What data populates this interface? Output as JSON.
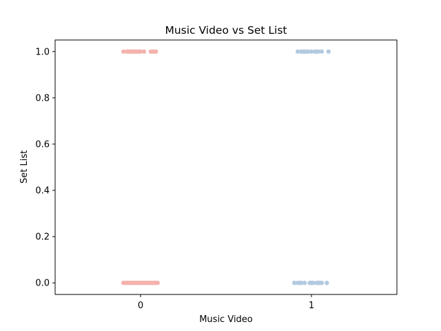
{
  "chart_data": {
    "type": "scatter",
    "subtype": "strip",
    "title": "Music Video vs Set List",
    "xlabel": "Music Video",
    "ylabel": "Set List",
    "categories": [
      "0",
      "1"
    ],
    "ylim": [
      -0.05,
      1.05
    ],
    "yticks": [
      0.0,
      0.2,
      0.4,
      0.6,
      0.8,
      1.0
    ],
    "ytick_labels": [
      "0.0",
      "0.2",
      "0.4",
      "0.6",
      "0.8",
      "1.0"
    ],
    "grid": false,
    "legend": "none",
    "colors": {
      "0": "#f4b2ad",
      "1": "#b2cae0"
    },
    "points": [
      {
        "cat": 0,
        "jitter": -0.1,
        "y": 1.0
      },
      {
        "cat": 0,
        "jitter": -0.08,
        "y": 1.0
      },
      {
        "cat": 0,
        "jitter": -0.07,
        "y": 1.0
      },
      {
        "cat": 0,
        "jitter": -0.06,
        "y": 1.0
      },
      {
        "cat": 0,
        "jitter": -0.05,
        "y": 1.0
      },
      {
        "cat": 0,
        "jitter": -0.04,
        "y": 1.0
      },
      {
        "cat": 0,
        "jitter": -0.03,
        "y": 1.0
      },
      {
        "cat": 0,
        "jitter": -0.02,
        "y": 1.0
      },
      {
        "cat": 0,
        "jitter": -0.01,
        "y": 1.0
      },
      {
        "cat": 0,
        "jitter": 0.0,
        "y": 1.0
      },
      {
        "cat": 0,
        "jitter": 0.02,
        "y": 1.0
      },
      {
        "cat": 0,
        "jitter": 0.06,
        "y": 1.0
      },
      {
        "cat": 0,
        "jitter": 0.07,
        "y": 1.0
      },
      {
        "cat": 0,
        "jitter": 0.08,
        "y": 1.0
      },
      {
        "cat": 0,
        "jitter": 0.09,
        "y": 1.0
      },
      {
        "cat": 0,
        "jitter": -0.1,
        "y": 0.0
      },
      {
        "cat": 0,
        "jitter": -0.09,
        "y": 0.0
      },
      {
        "cat": 0,
        "jitter": -0.08,
        "y": 0.0
      },
      {
        "cat": 0,
        "jitter": -0.07,
        "y": 0.0
      },
      {
        "cat": 0,
        "jitter": -0.06,
        "y": 0.0
      },
      {
        "cat": 0,
        "jitter": -0.05,
        "y": 0.0
      },
      {
        "cat": 0,
        "jitter": -0.04,
        "y": 0.0
      },
      {
        "cat": 0,
        "jitter": -0.03,
        "y": 0.0
      },
      {
        "cat": 0,
        "jitter": -0.02,
        "y": 0.0
      },
      {
        "cat": 0,
        "jitter": -0.01,
        "y": 0.0
      },
      {
        "cat": 0,
        "jitter": 0.0,
        "y": 0.0
      },
      {
        "cat": 0,
        "jitter": 0.01,
        "y": 0.0
      },
      {
        "cat": 0,
        "jitter": 0.02,
        "y": 0.0
      },
      {
        "cat": 0,
        "jitter": 0.03,
        "y": 0.0
      },
      {
        "cat": 0,
        "jitter": 0.04,
        "y": 0.0
      },
      {
        "cat": 0,
        "jitter": 0.05,
        "y": 0.0
      },
      {
        "cat": 0,
        "jitter": 0.06,
        "y": 0.0
      },
      {
        "cat": 0,
        "jitter": 0.07,
        "y": 0.0
      },
      {
        "cat": 0,
        "jitter": 0.08,
        "y": 0.0
      },
      {
        "cat": 0,
        "jitter": 0.09,
        "y": 0.0
      },
      {
        "cat": 0,
        "jitter": 0.1,
        "y": 0.0
      },
      {
        "cat": 1,
        "jitter": -0.08,
        "y": 1.0
      },
      {
        "cat": 1,
        "jitter": -0.06,
        "y": 1.0
      },
      {
        "cat": 1,
        "jitter": -0.05,
        "y": 1.0
      },
      {
        "cat": 1,
        "jitter": -0.04,
        "y": 1.0
      },
      {
        "cat": 1,
        "jitter": -0.03,
        "y": 1.0
      },
      {
        "cat": 1,
        "jitter": -0.02,
        "y": 1.0
      },
      {
        "cat": 1,
        "jitter": 0.0,
        "y": 1.0
      },
      {
        "cat": 1,
        "jitter": 0.02,
        "y": 1.0
      },
      {
        "cat": 1,
        "jitter": 0.03,
        "y": 1.0
      },
      {
        "cat": 1,
        "jitter": 0.04,
        "y": 1.0
      },
      {
        "cat": 1,
        "jitter": 0.06,
        "y": 1.0
      },
      {
        "cat": 1,
        "jitter": 0.1,
        "y": 1.0
      },
      {
        "cat": 1,
        "jitter": -0.1,
        "y": 0.0
      },
      {
        "cat": 1,
        "jitter": -0.08,
        "y": 0.0
      },
      {
        "cat": 1,
        "jitter": -0.07,
        "y": 0.0
      },
      {
        "cat": 1,
        "jitter": -0.06,
        "y": 0.0
      },
      {
        "cat": 1,
        "jitter": -0.04,
        "y": 0.0
      },
      {
        "cat": 1,
        "jitter": -0.01,
        "y": 0.0
      },
      {
        "cat": 1,
        "jitter": 0.0,
        "y": 0.0
      },
      {
        "cat": 1,
        "jitter": 0.01,
        "y": 0.0
      },
      {
        "cat": 1,
        "jitter": 0.03,
        "y": 0.0
      },
      {
        "cat": 1,
        "jitter": 0.04,
        "y": 0.0
      },
      {
        "cat": 1,
        "jitter": 0.05,
        "y": 0.0
      },
      {
        "cat": 1,
        "jitter": 0.06,
        "y": 0.0
      },
      {
        "cat": 1,
        "jitter": 0.09,
        "y": 0.0
      }
    ]
  }
}
